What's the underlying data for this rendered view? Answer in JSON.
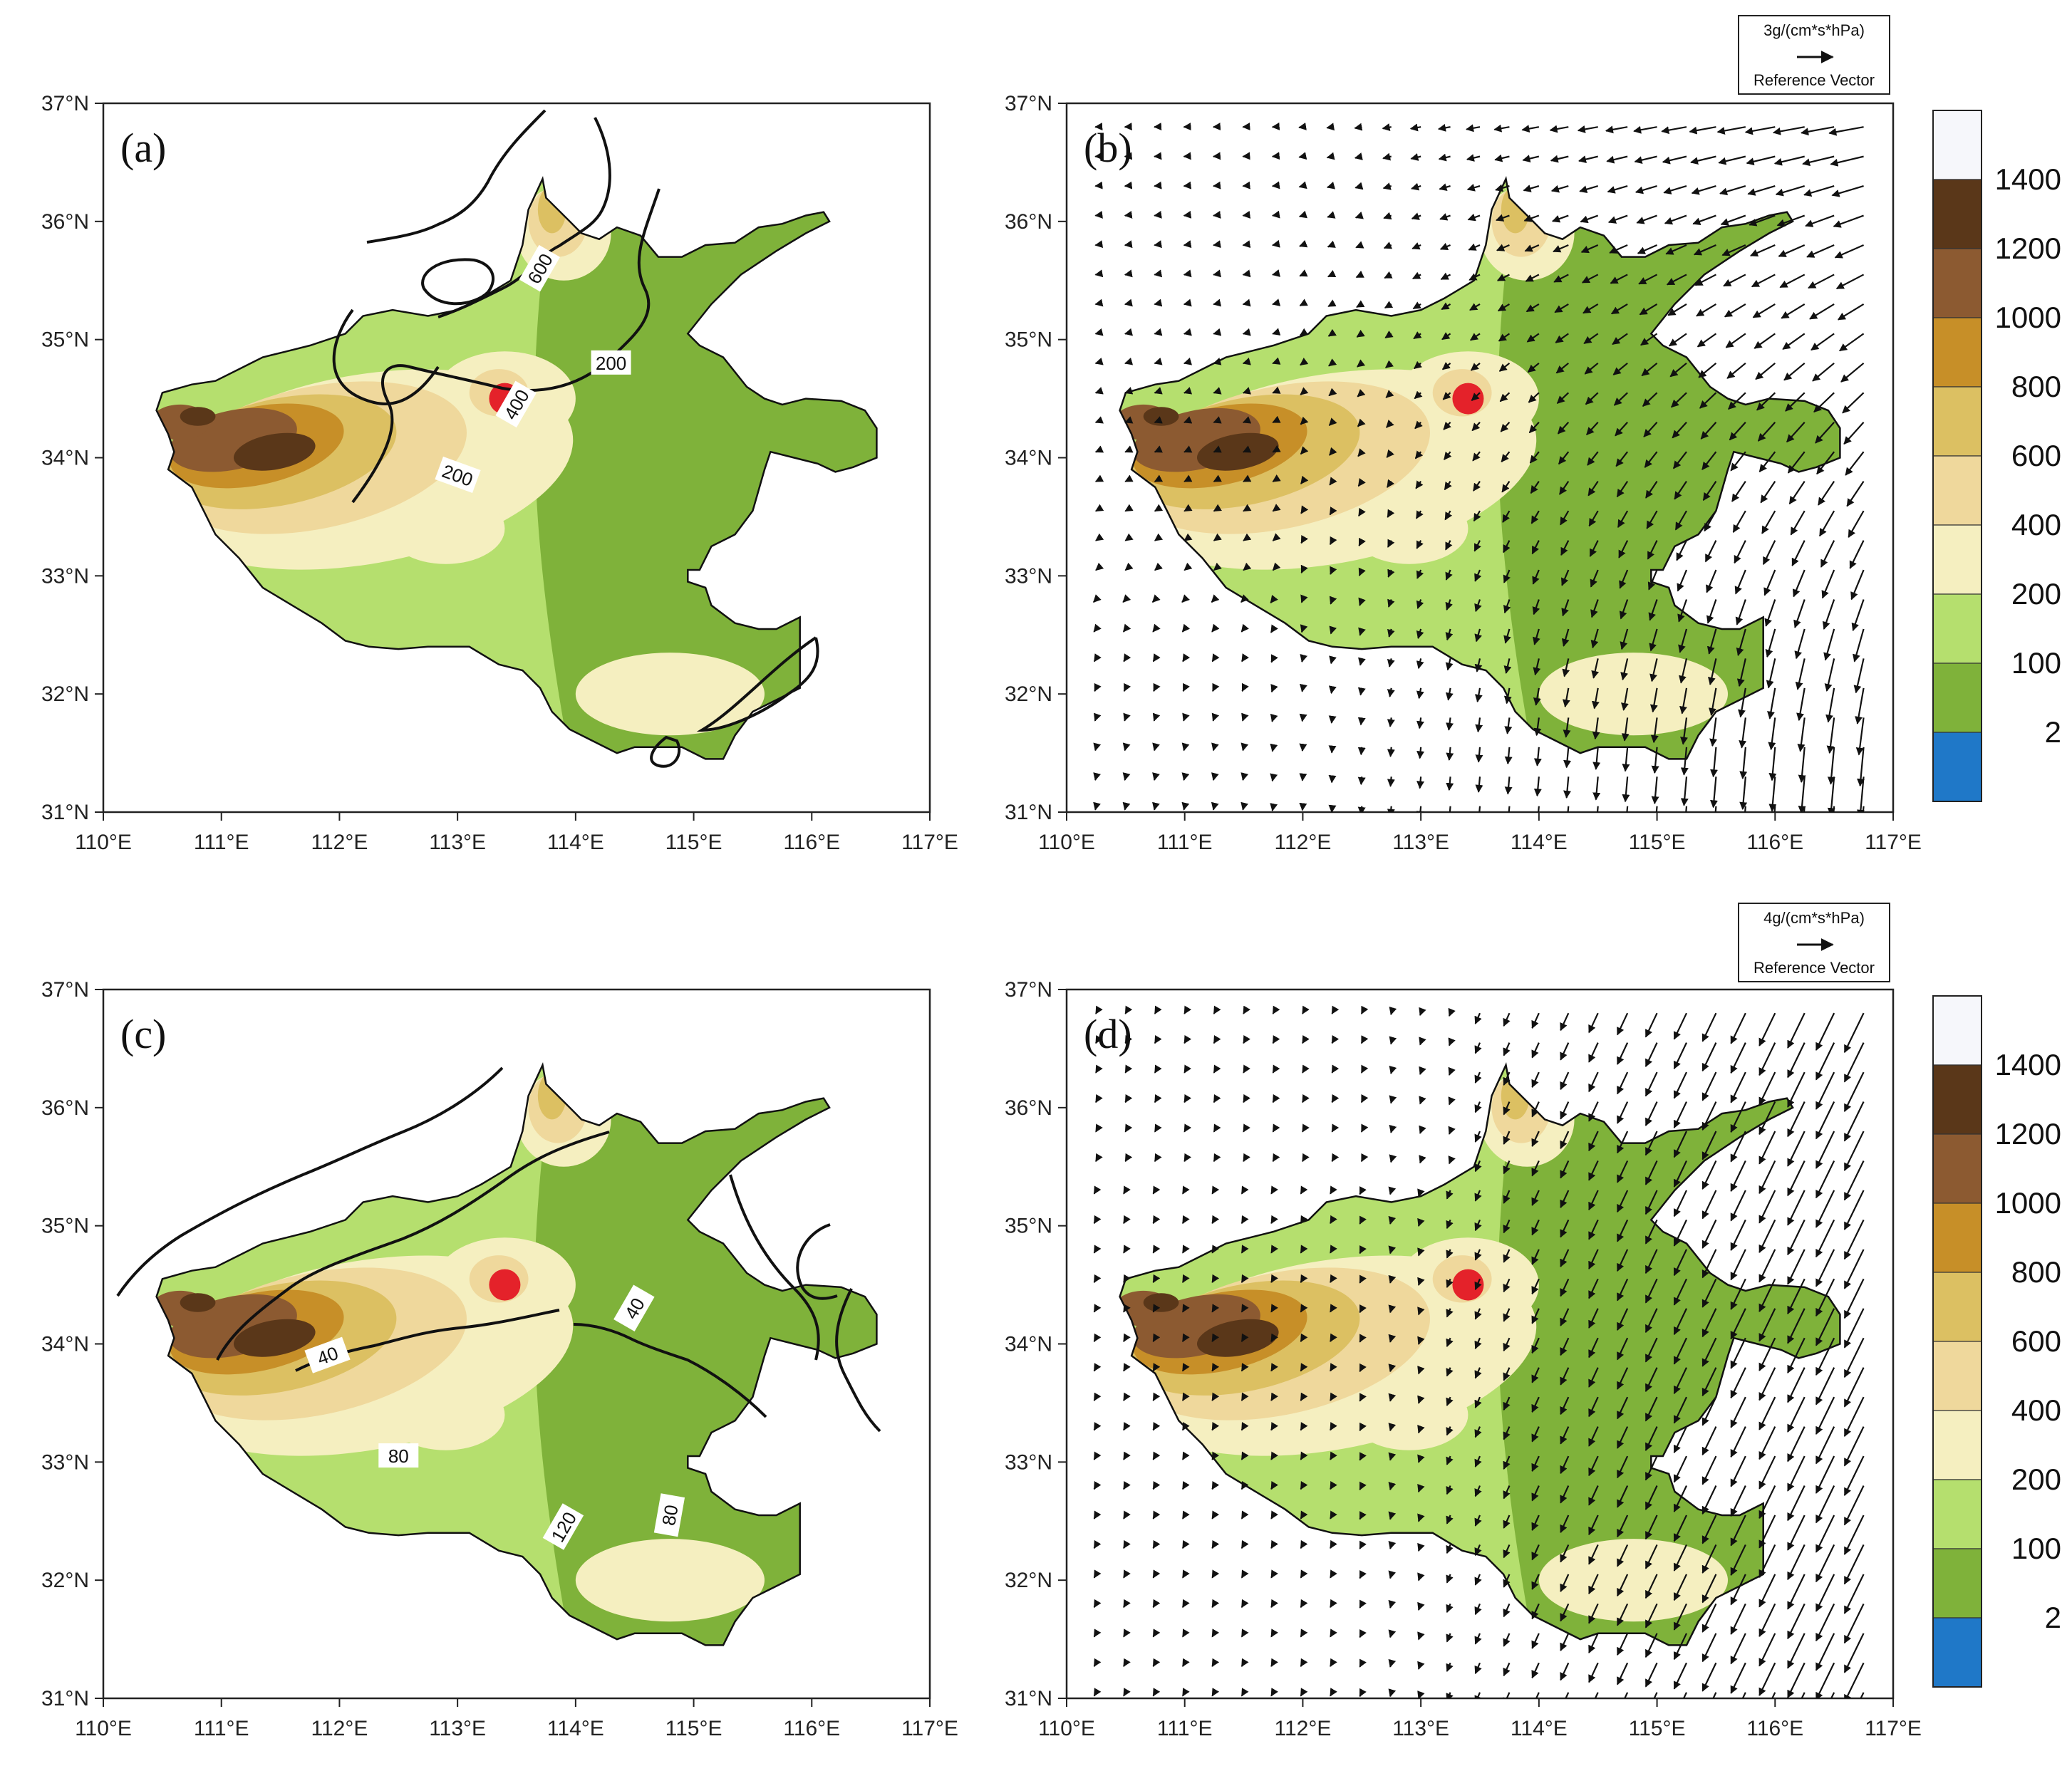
{
  "figure": {
    "panels": [
      {
        "id": "a",
        "label": "(a)",
        "contour_labels": [
          "600",
          "400",
          "200",
          "200"
        ],
        "has_vectors": false
      },
      {
        "id": "b",
        "label": "(b)",
        "contour_labels": [],
        "has_vectors": true,
        "ref_vector": {
          "magnitude": "3g/(cm*s*hPa)",
          "caption": "Reference Vector"
        }
      },
      {
        "id": "c",
        "label": "(c)",
        "contour_labels": [
          "40",
          "40",
          "80",
          "120",
          "80"
        ],
        "has_vectors": false
      },
      {
        "id": "d",
        "label": "(d)",
        "contour_labels": [],
        "has_vectors": true,
        "ref_vector": {
          "magnitude": "4g/(cm*s*hPa)",
          "caption": "Reference Vector"
        }
      }
    ],
    "lat_ticks": [
      "31°N",
      "32°N",
      "33°N",
      "34°N",
      "35°N",
      "36°N",
      "37°N"
    ],
    "lon_ticks": [
      "110°E",
      "111°E",
      "112°E",
      "113°E",
      "114°E",
      "115°E",
      "116°E",
      "117°E"
    ],
    "colorbar": {
      "labels": [
        "1400",
        "1200",
        "1000",
        "800",
        "600",
        "400",
        "200",
        "100",
        "2"
      ],
      "colors": [
        "#f6f7fb",
        "#5a3719",
        "#8c5a31",
        "#c78f28",
        "#dcc062",
        "#efd89c",
        "#f5efc0",
        "#b5df6e",
        "#7fb23a",
        "#1f78c8"
      ]
    },
    "station_marker": {
      "lon": 113.4,
      "lat": 34.5,
      "color": "#e4222a"
    }
  }
}
